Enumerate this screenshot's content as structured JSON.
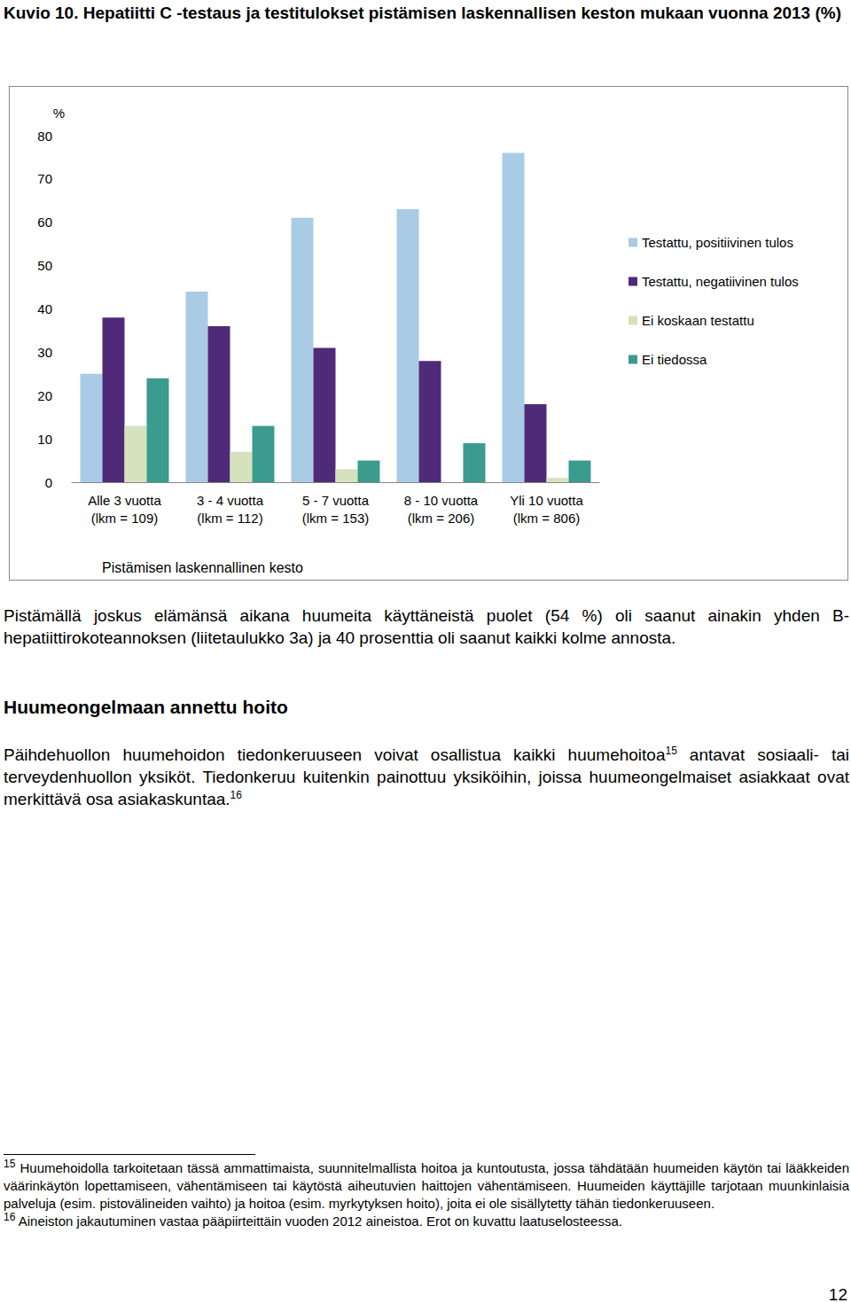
{
  "caption": "Kuvio 10. Hepatiitti C -testaus ja testitulokset pistämisen laskennallisen keston mukaan vuonna 2013 (%)",
  "chart_data": {
    "type": "bar",
    "xlabel": "Pistämisen laskennallinen kesto",
    "ylabel": "%",
    "categories": [
      "Alle 3 vuotta\n(lkm = 109)",
      "3 - 4 vuotta\n(lkm = 112)",
      "5 - 7 vuotta\n(lkm = 153)",
      "8 - 10 vuotta\n(lkm = 206)",
      "Yli 10 vuotta\n(lkm = 806)"
    ],
    "series": [
      {
        "name": "Testattu, positiivinen tulos",
        "color": "#a9cbe5",
        "values": [
          25,
          44,
          61,
          63,
          76
        ]
      },
      {
        "name": "Testattu, negatiivinen tulos",
        "color": "#4f2a78",
        "values": [
          38,
          36,
          31,
          28,
          18
        ]
      },
      {
        "name": "Ei koskaan testattu",
        "color": "#d5e2bd",
        "values": [
          13,
          7,
          3,
          0,
          1
        ]
      },
      {
        "name": "Ei tiedossa",
        "color": "#3a9b8e",
        "values": [
          24,
          13,
          5,
          9,
          5
        ]
      }
    ],
    "ylim": [
      0,
      80
    ],
    "yticks": [
      0,
      10,
      20,
      30,
      40,
      50,
      60,
      70,
      80
    ],
    "grid": false,
    "legend": "right",
    "data_labels": false
  },
  "paragraphs": [
    [
      {
        "text": "Pistämällä joskus elämänsä aikana huumeita käyttäneistä puolet (54 %) oli saanut ainakin yhden B-hepatiittirokoteannoksen (liitetaulukko 3a) ja 40 prosenttia oli saanut kaikki kolme annosta."
      }
    ]
  ],
  "heading": "Huumeongelmaan annettu hoito",
  "section_paragraphs": [
    [
      {
        "text": "Päihdehuollon huumehoidon tiedonkeruuseen voivat osallistua kaikki huumehoitoa"
      },
      {
        "sup": "15"
      },
      {
        "text": " antavat sosiaali- tai terveydenhuollon yksiköt. Tiedonkeruu kuitenkin painottuu yksiköihin, joissa huumeongelmaiset asiakkaat ovat merkittävä osa asiakaskuntaa."
      },
      {
        "sup": "16"
      }
    ]
  ],
  "footnotes": [
    {
      "mark": "15",
      "text": " Huumehoidolla tarkoitetaan tässä ammattimaista, suunnitelmallista hoitoa ja kuntoutusta, jossa tähdätään huumeiden käytön tai lääkkeiden väärinkäytön lopettamiseen, vähentämiseen tai käytöstä aiheutuvien haittojen vähentämiseen. Huumeiden käyttäjille tarjotaan muunkinlaisia palveluja (esim. pistovälineiden vaihto) ja hoitoa (esim. myrkytyksen hoito), joita ei ole sisällytetty tähän tiedonkeruuseen."
    },
    {
      "mark": "16",
      "text": " Aineiston jakautuminen vastaa pääpiirteittäin vuoden 2012 aineistoa. Erot on kuvattu laatuselosteessa."
    }
  ],
  "page_number": "12"
}
